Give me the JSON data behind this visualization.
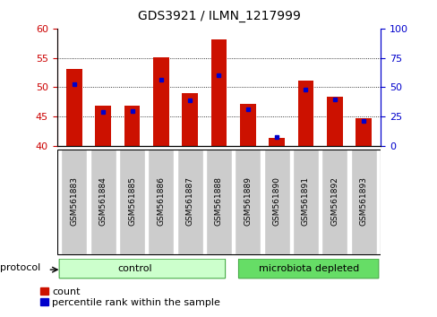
{
  "title": "GDS3921 / ILMN_1217999",
  "samples": [
    "GSM561883",
    "GSM561884",
    "GSM561885",
    "GSM561886",
    "GSM561887",
    "GSM561888",
    "GSM561889",
    "GSM561890",
    "GSM561891",
    "GSM561892",
    "GSM561893"
  ],
  "red_values": [
    53.1,
    46.8,
    46.8,
    55.1,
    49.0,
    58.2,
    47.2,
    41.3,
    51.1,
    48.4,
    44.7
  ],
  "blue_values": [
    50.5,
    45.8,
    45.9,
    51.3,
    47.7,
    52.0,
    46.3,
    41.5,
    49.6,
    47.9,
    44.2
  ],
  "y_min": 40,
  "y_max": 60,
  "y_ticks_left": [
    40,
    45,
    50,
    55,
    60
  ],
  "y_ticks_right": [
    0,
    25,
    50,
    75,
    100
  ],
  "control_indices": [
    0,
    1,
    2,
    3,
    4,
    5
  ],
  "mb_indices": [
    6,
    7,
    8,
    9,
    10
  ],
  "control_label": "control",
  "mb_label": "microbiota depleted",
  "protocol_label": "protocol",
  "left_axis_color": "#cc0000",
  "right_axis_color": "#0000cc",
  "bar_color": "#cc1100",
  "blue_marker_color": "#0000cc",
  "bar_width": 0.55,
  "control_color": "#ccffcc",
  "mb_color": "#66dd66",
  "group_edge_color": "#44aa44",
  "xtick_bg_color": "#cccccc",
  "background_color": "#ffffff",
  "grid_dotted_ticks": [
    45,
    50,
    55
  ],
  "figsize": [
    4.89,
    3.54
  ],
  "dpi": 100
}
